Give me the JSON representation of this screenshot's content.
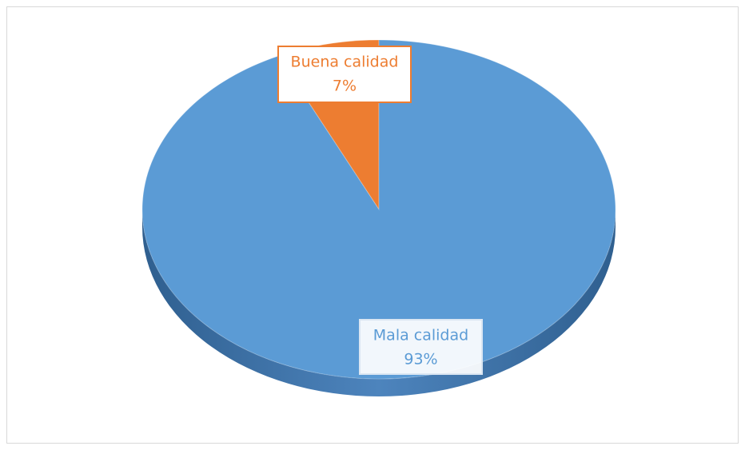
{
  "chart_data": {
    "type": "pie",
    "categories": [
      "Buena calidad",
      "Mala calidad"
    ],
    "values": [
      7,
      93
    ],
    "value_labels": [
      "7%",
      "93%"
    ],
    "colors": [
      "#ed7d31",
      "#5b9bd5"
    ]
  }
}
